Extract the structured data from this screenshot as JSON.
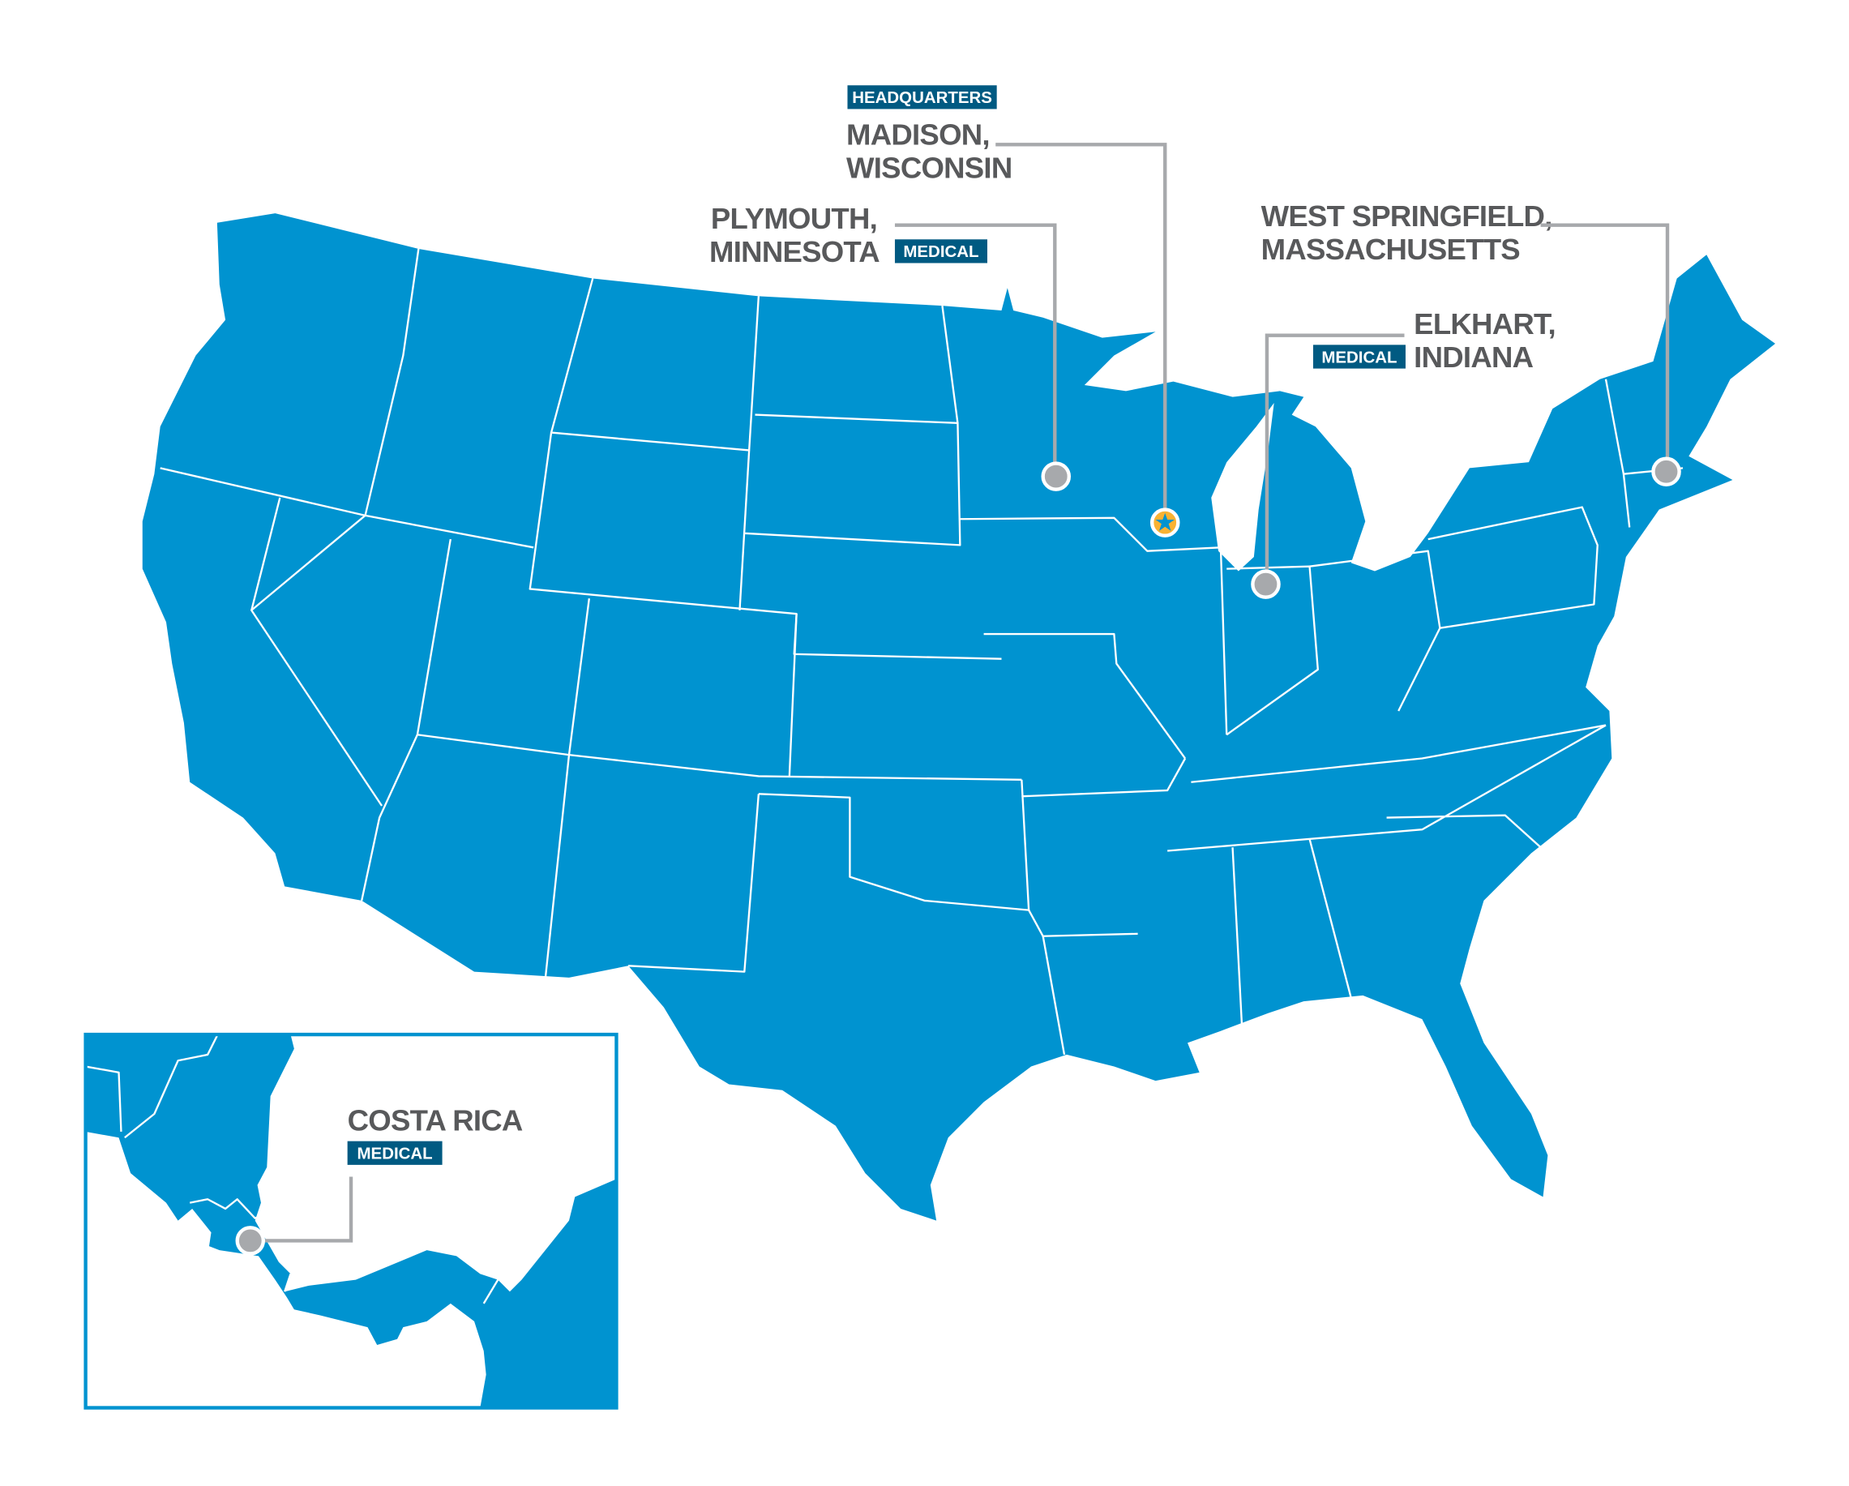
{
  "colors": {
    "land": "#0093d0",
    "badge": "#005a82",
    "label_text": "#58595b",
    "leader": "#a7a9ac",
    "marker": "#a7a9ac",
    "headquarters_marker": "#f9b233"
  },
  "locations": {
    "madison": {
      "badge": "HEADQUARTERS",
      "line1": "MADISON,",
      "line2": "WISCONSIN",
      "marker_icon": "star-icon"
    },
    "plymouth": {
      "badge": "MEDICAL",
      "line1": "PLYMOUTH,",
      "line2": "MINNESOTA",
      "marker_icon": "circle-marker-icon"
    },
    "west_springfield": {
      "line1": "WEST SPRINGFIELD,",
      "line2": "MASSACHUSETTS",
      "marker_icon": "circle-marker-icon"
    },
    "elkhart": {
      "badge": "MEDICAL",
      "line1": "ELKHART,",
      "line2": "INDIANA",
      "marker_icon": "circle-marker-icon"
    },
    "costa_rica": {
      "badge": "MEDICAL",
      "line1": "COSTA RICA",
      "marker_icon": "circle-marker-icon"
    }
  }
}
